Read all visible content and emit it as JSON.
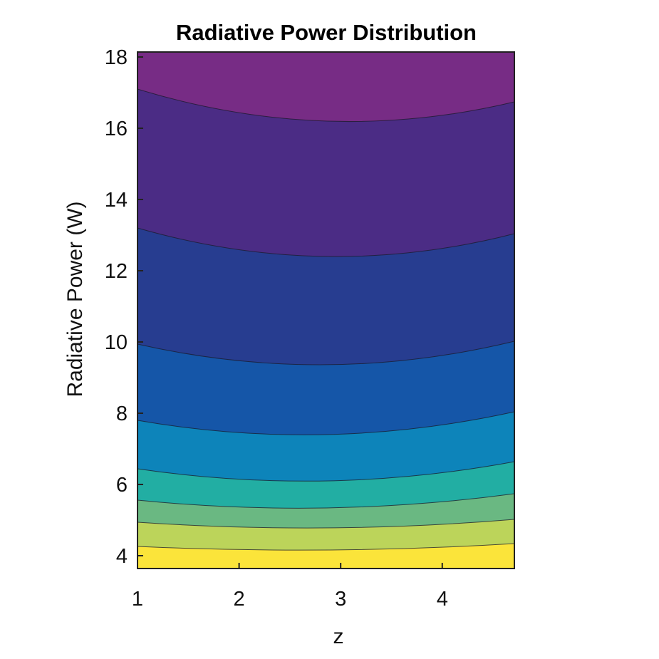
{
  "chart_data": {
    "type": "contour",
    "title": "Radiative Power Distribution",
    "xlabel": "z",
    "ylabel": "Radiative Power (W)",
    "xlim": [
      1,
      4.71
    ],
    "ylim": [
      3.64,
      18.14
    ],
    "xticks": [
      1,
      2,
      3,
      4
    ],
    "yticks": [
      4,
      6,
      8,
      10,
      12,
      14,
      16,
      18
    ],
    "grid": false,
    "contour_lines": [
      {
        "z": [
          1,
          2.9,
          4.71
        ],
        "y": [
          17.1,
          16.2,
          16.74
        ]
      },
      {
        "z": [
          1,
          2.9,
          4.71
        ],
        "y": [
          13.2,
          12.4,
          13.04
        ]
      },
      {
        "z": [
          1,
          2.9,
          4.71
        ],
        "y": [
          9.94,
          9.36,
          10.02
        ]
      },
      {
        "z": [
          1,
          2.9,
          4.71
        ],
        "y": [
          7.8,
          7.4,
          8.04
        ]
      },
      {
        "z": [
          1,
          2.9,
          4.71
        ],
        "y": [
          6.44,
          6.1,
          6.64
        ]
      },
      {
        "z": [
          1,
          2.9,
          4.71
        ],
        "y": [
          5.56,
          5.34,
          5.74
        ]
      },
      {
        "z": [
          1,
          2.9,
          4.71
        ],
        "y": [
          4.94,
          4.78,
          5.02
        ]
      },
      {
        "z": [
          1,
          2.9,
          4.71
        ],
        "y": [
          4.26,
          4.16,
          4.34
        ]
      }
    ],
    "band_colors_top_to_bottom": [
      "#772c85",
      "#4b2c85",
      "#273d90",
      "#1556a8",
      "#0d84ba",
      "#22aea3",
      "#6ab882",
      "#bcd45a",
      "#fbe43a"
    ]
  }
}
